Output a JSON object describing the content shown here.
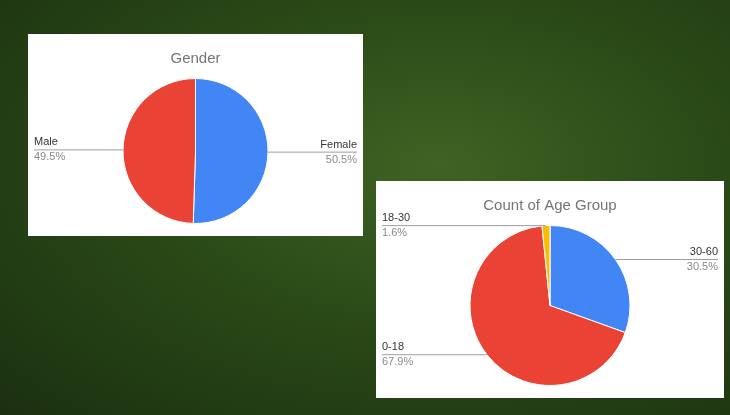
{
  "chart_data": [
    {
      "type": "pie",
      "title": "Gender",
      "categories": [
        "Female",
        "Male"
      ],
      "values": [
        50.5,
        49.5
      ],
      "value_labels": [
        "50.5%",
        "49.5%"
      ],
      "colors": [
        "#4285f4",
        "#ea4335"
      ],
      "data_labels": true
    },
    {
      "type": "pie",
      "title": "Count of Age Group",
      "categories": [
        "30-60",
        "0-18",
        "18-30"
      ],
      "values": [
        30.5,
        67.9,
        1.6
      ],
      "value_labels": [
        "30.5%",
        "67.9%",
        "1.6%"
      ],
      "colors": [
        "#4285f4",
        "#ea4335",
        "#fbbc04"
      ],
      "data_labels": true
    }
  ]
}
